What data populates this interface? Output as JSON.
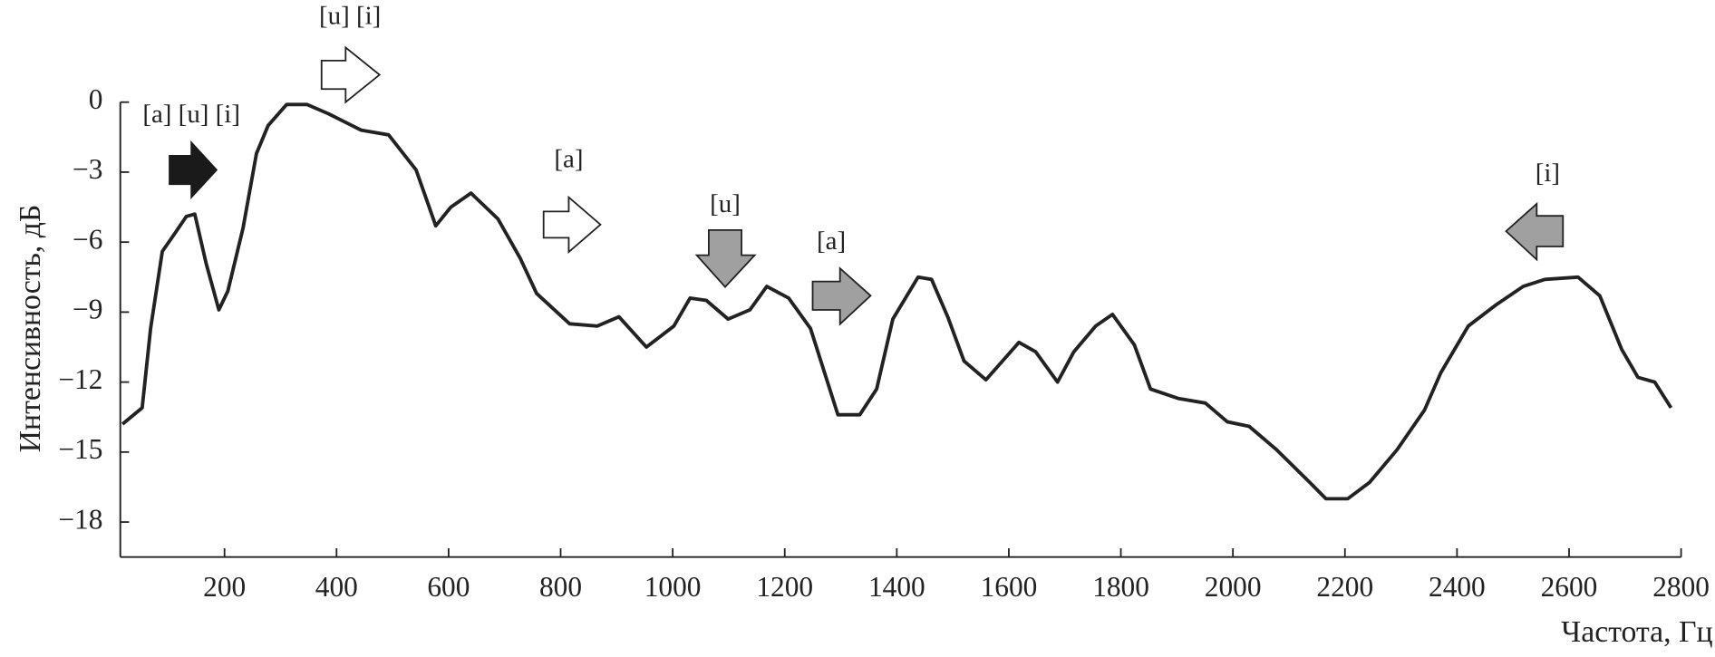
{
  "chart_data": {
    "type": "line",
    "xlabel": "Частота, Гц",
    "ylabel": "Интенсивность, дБ",
    "xlim": [
      14,
      2800
    ],
    "ylim": [
      -19.5,
      0
    ],
    "xticks": [
      200,
      400,
      600,
      800,
      1000,
      1200,
      1400,
      1600,
      1800,
      2000,
      2200,
      2400,
      2600,
      2800
    ],
    "yticks": [
      0,
      {
        "value": -3,
        "label": "−3"
      },
      {
        "value": -6,
        "label": "−6"
      },
      {
        "value": -9,
        "label": "−9"
      },
      {
        "value": -12,
        "label": "−12"
      },
      {
        "value": -15,
        "label": "−15"
      },
      {
        "value": -18,
        "label": "−18"
      }
    ],
    "grid": false,
    "x": [
      18,
      53,
      68,
      89,
      112,
      132,
      147,
      167,
      190,
      206,
      233,
      257,
      278,
      311,
      347,
      386,
      444,
      493,
      542,
      577,
      604,
      640,
      688,
      728,
      757,
      816,
      865,
      904,
      953,
      1002,
      1031,
      1060,
      1099,
      1138,
      1168,
      1207,
      1246,
      1295,
      1334,
      1364,
      1393,
      1438,
      1462,
      1491,
      1520,
      1559,
      1618,
      1648,
      1687,
      1716,
      1755,
      1785,
      1824,
      1853,
      1902,
      1951,
      1990,
      2029,
      2078,
      2137,
      2166,
      2205,
      2244,
      2293,
      2342,
      2371,
      2420,
      2469,
      2518,
      2557,
      2616,
      2655,
      2694,
      2723,
      2753,
      2782
    ],
    "series": [
      {
        "color": "#222222",
        "values": [
          -13.8,
          -13.1,
          -9.7,
          -6.4,
          -5.6,
          -4.9,
          -4.8,
          -6.9,
          -8.9,
          -8.1,
          -5.4,
          -2.2,
          -1.0,
          -0.1,
          -0.1,
          -0.5,
          -1.2,
          -1.4,
          -2.9,
          -5.3,
          -4.5,
          -3.9,
          -5.0,
          -6.7,
          -8.2,
          -9.5,
          -9.6,
          -9.2,
          -10.5,
          -9.6,
          -8.4,
          -8.5,
          -9.3,
          -8.9,
          -7.9,
          -8.4,
          -9.7,
          -13.4,
          -13.4,
          -12.3,
          -9.3,
          -7.5,
          -7.6,
          -9.2,
          -11.1,
          -11.9,
          -10.3,
          -10.7,
          -12.0,
          -10.7,
          -9.6,
          -9.1,
          -10.4,
          -12.3,
          -12.7,
          -12.9,
          -13.7,
          -13.9,
          -14.9,
          -16.3,
          -17.0,
          -17.0,
          -16.3,
          -14.9,
          -13.2,
          -11.6,
          -9.6,
          -8.7,
          -7.9,
          -7.6,
          -7.5,
          -8.3,
          -10.6,
          -11.8,
          -12.0,
          -13.1
        ]
      }
    ],
    "annotations": [
      "[a] [u] [i]",
      "[u] [i]",
      "[a]",
      "[u]",
      "[a]",
      "[i]"
    ]
  }
}
